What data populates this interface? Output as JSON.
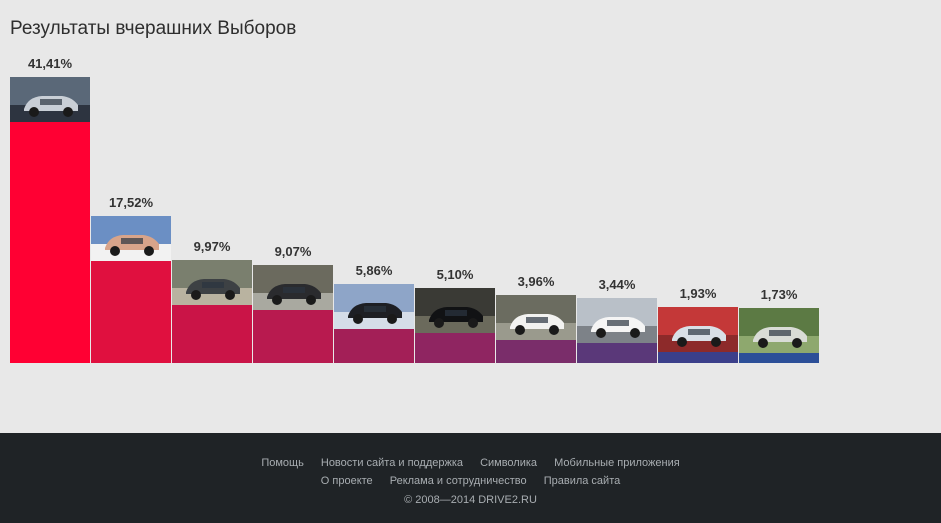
{
  "chart_data": {
    "type": "bar",
    "title": "Результаты вчерашних Выборов",
    "categories": [
      "",
      "",
      "",
      "",
      "",
      "",
      "",
      "",
      "",
      ""
    ],
    "values": [
      41.41,
      17.52,
      9.97,
      9.07,
      5.86,
      5.1,
      3.96,
      3.44,
      1.93,
      1.73
    ],
    "labels": [
      "41,41%",
      "17,52%",
      "9,97%",
      "9,07%",
      "5,86%",
      "5,10%",
      "3,96%",
      "3,44%",
      "1,93%",
      "1,73%"
    ],
    "colors": [
      "#ff0033",
      "#e0103f",
      "#ca1447",
      "#b81a4f",
      "#a31f57",
      "#8f2561",
      "#7a2d6a",
      "#5a3879",
      "#3b3f8a",
      "#2c4f98"
    ],
    "thumbs": [
      "drift-car-smoke-icon",
      "white-car-theater-icon",
      "dark-van-icon",
      "black-car-girl-icon",
      "black-hatchback-icon",
      "black-sedan-icon",
      "white-peugeot-icon",
      "white-sedan-icon",
      "red-hatchback-icon",
      "silver-car-park-icon"
    ],
    "ylim": [
      0,
      41.41
    ],
    "grid": false,
    "legend": "none"
  },
  "footer": {
    "links_row1": [
      "Помощь",
      "Новости сайта и поддержка",
      "Символика",
      "Мобильные приложения"
    ],
    "links_row2": [
      "О проекте",
      "Реклама и сотрудничество",
      "Правила сайта"
    ],
    "copyright": "© 2008—2014 DRIVE2.RU"
  }
}
